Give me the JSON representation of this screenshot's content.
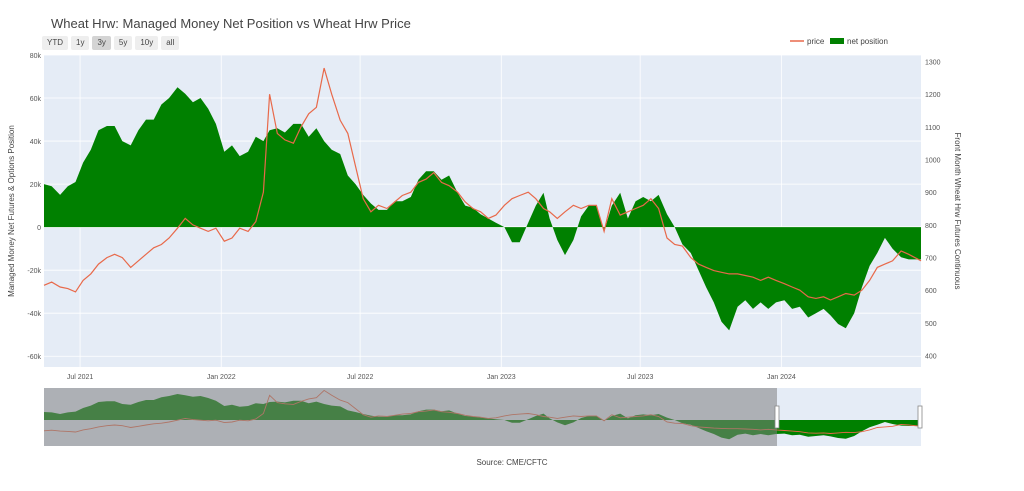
{
  "title": "Wheat Hrw: Managed Money Net Position vs Wheat Hrw Price",
  "range_buttons": [
    {
      "label": "YTD",
      "active": false
    },
    {
      "label": "1y",
      "active": false
    },
    {
      "label": "3y",
      "active": true
    },
    {
      "label": "5y",
      "active": false
    },
    {
      "label": "10y",
      "active": false
    },
    {
      "label": "all",
      "active": false
    }
  ],
  "source": "Source: CME/CFTC",
  "colors": {
    "price": "#e8694a",
    "net_position": "#008000",
    "plot_bg": "#e5ecf6",
    "navigator_shade": "#7f7f7f"
  },
  "chart_data": {
    "type": "line",
    "title": "Wheat Hrw: Managed Money Net Position vs Wheat Hrw Price",
    "y_left": {
      "label": "Managed Money Net Futures & Options Position",
      "range": [
        -65000,
        80000
      ],
      "ticks": [
        80000,
        60000,
        40000,
        20000,
        0,
        -20000,
        -40000,
        -60000
      ],
      "tick_labels": [
        "80k",
        "60k",
        "40k",
        "20k",
        "0",
        "-20k",
        "-40k",
        "-60k"
      ]
    },
    "y_right": {
      "label": "Front Month Wheat Hrw Futures Continuous",
      "range": [
        365,
        1320
      ],
      "ticks": [
        1300,
        1200,
        1100,
        1000,
        900,
        800,
        700,
        600,
        500,
        400
      ],
      "tick_labels": [
        "1300",
        "1200",
        "1100",
        "1000",
        "900",
        "800",
        "700",
        "600",
        "500",
        "400"
      ]
    },
    "x_axis": {
      "range": [
        "2021-05-15",
        "2024-07-01"
      ],
      "ticks": [
        "2021-07-01",
        "2022-01-01",
        "2022-07-01",
        "2023-01-01",
        "2023-07-01",
        "2024-01-01"
      ],
      "tick_labels": [
        "Jul 2021",
        "Jan 2022",
        "Jul 2022",
        "Jan 2023",
        "Jul 2023",
        "Jan 2024"
      ]
    },
    "legend": {
      "placement": "top-right",
      "entries": [
        "price",
        "net position"
      ]
    },
    "grid": true,
    "series": [
      {
        "name": "net position",
        "type": "area",
        "points": [
          [
            "2021-05-15",
            20000
          ],
          [
            "2021-05-25",
            19000
          ],
          [
            "2021-06-05",
            15000
          ],
          [
            "2021-06-15",
            19000
          ],
          [
            "2021-06-25",
            21000
          ],
          [
            "2021-07-05",
            30000
          ],
          [
            "2021-07-15",
            36000
          ],
          [
            "2021-07-25",
            45000
          ],
          [
            "2021-08-05",
            47000
          ],
          [
            "2021-08-15",
            47000
          ],
          [
            "2021-08-25",
            40000
          ],
          [
            "2021-09-05",
            38000
          ],
          [
            "2021-09-15",
            45000
          ],
          [
            "2021-09-25",
            50000
          ],
          [
            "2021-10-05",
            50000
          ],
          [
            "2021-10-15",
            57000
          ],
          [
            "2021-10-25",
            60000
          ],
          [
            "2021-11-05",
            65000
          ],
          [
            "2021-11-15",
            62000
          ],
          [
            "2021-11-25",
            58000
          ],
          [
            "2021-12-05",
            60000
          ],
          [
            "2021-12-15",
            55000
          ],
          [
            "2021-12-25",
            48000
          ],
          [
            "2022-01-05",
            35000
          ],
          [
            "2022-01-15",
            38000
          ],
          [
            "2022-01-25",
            33000
          ],
          [
            "2022-02-05",
            35000
          ],
          [
            "2022-02-15",
            42000
          ],
          [
            "2022-02-25",
            40000
          ],
          [
            "2022-03-05",
            45000
          ],
          [
            "2022-03-15",
            46000
          ],
          [
            "2022-03-25",
            44000
          ],
          [
            "2022-04-05",
            48000
          ],
          [
            "2022-04-15",
            48000
          ],
          [
            "2022-04-25",
            42000
          ],
          [
            "2022-05-05",
            46000
          ],
          [
            "2022-05-15",
            40000
          ],
          [
            "2022-05-25",
            36000
          ],
          [
            "2022-06-05",
            34000
          ],
          [
            "2022-06-15",
            24000
          ],
          [
            "2022-06-25",
            20000
          ],
          [
            "2022-07-05",
            15000
          ],
          [
            "2022-07-15",
            11000
          ],
          [
            "2022-07-25",
            8000
          ],
          [
            "2022-08-05",
            8000
          ],
          [
            "2022-08-15",
            12000
          ],
          [
            "2022-08-25",
            12000
          ],
          [
            "2022-09-05",
            14000
          ],
          [
            "2022-09-15",
            22000
          ],
          [
            "2022-09-25",
            26000
          ],
          [
            "2022-10-05",
            26000
          ],
          [
            "2022-10-15",
            22000
          ],
          [
            "2022-10-25",
            24000
          ],
          [
            "2022-11-05",
            16000
          ],
          [
            "2022-11-15",
            10000
          ],
          [
            "2022-11-25",
            9000
          ],
          [
            "2022-12-05",
            6000
          ],
          [
            "2022-12-15",
            4000
          ],
          [
            "2022-12-25",
            2000
          ],
          [
            "2023-01-05",
            0
          ],
          [
            "2023-01-15",
            -7000
          ],
          [
            "2023-01-25",
            -7000
          ],
          [
            "2023-02-05",
            2000
          ],
          [
            "2023-02-15",
            10000
          ],
          [
            "2023-02-25",
            16000
          ],
          [
            "2023-03-05",
            4000
          ],
          [
            "2023-03-15",
            -6000
          ],
          [
            "2023-03-25",
            -13000
          ],
          [
            "2023-04-05",
            -6000
          ],
          [
            "2023-04-15",
            5000
          ],
          [
            "2023-04-25",
            10000
          ],
          [
            "2023-05-05",
            10000
          ],
          [
            "2023-05-15",
            -2000
          ],
          [
            "2023-05-25",
            10000
          ],
          [
            "2023-06-05",
            16000
          ],
          [
            "2023-06-15",
            4000
          ],
          [
            "2023-06-25",
            12000
          ],
          [
            "2023-07-05",
            14000
          ],
          [
            "2023-07-15",
            12000
          ],
          [
            "2023-07-25",
            15000
          ],
          [
            "2023-08-05",
            6000
          ],
          [
            "2023-08-15",
            0
          ],
          [
            "2023-08-25",
            -8000
          ],
          [
            "2023-09-05",
            -12000
          ],
          [
            "2023-09-15",
            -20000
          ],
          [
            "2023-09-25",
            -28000
          ],
          [
            "2023-10-05",
            -35000
          ],
          [
            "2023-10-15",
            -44000
          ],
          [
            "2023-10-25",
            -48000
          ],
          [
            "2023-11-05",
            -37000
          ],
          [
            "2023-11-15",
            -34000
          ],
          [
            "2023-11-25",
            -38000
          ],
          [
            "2023-12-05",
            -35000
          ],
          [
            "2023-12-15",
            -38000
          ],
          [
            "2023-12-25",
            -35000
          ],
          [
            "2024-01-05",
            -34000
          ],
          [
            "2024-01-15",
            -38000
          ],
          [
            "2024-01-25",
            -37000
          ],
          [
            "2024-02-05",
            -42000
          ],
          [
            "2024-02-15",
            -40000
          ],
          [
            "2024-02-25",
            -38000
          ],
          [
            "2024-03-05",
            -41000
          ],
          [
            "2024-03-15",
            -45000
          ],
          [
            "2024-03-25",
            -47000
          ],
          [
            "2024-04-05",
            -40000
          ],
          [
            "2024-04-15",
            -28000
          ],
          [
            "2024-04-25",
            -18000
          ],
          [
            "2024-05-05",
            -12000
          ],
          [
            "2024-05-15",
            -5000
          ],
          [
            "2024-05-25",
            -10000
          ],
          [
            "2024-06-05",
            -14000
          ],
          [
            "2024-06-15",
            -15000
          ],
          [
            "2024-07-01",
            -15000
          ]
        ]
      },
      {
        "name": "price",
        "type": "line",
        "points": [
          [
            "2021-05-15",
            615
          ],
          [
            "2021-05-25",
            625
          ],
          [
            "2021-06-05",
            610
          ],
          [
            "2021-06-15",
            605
          ],
          [
            "2021-06-25",
            595
          ],
          [
            "2021-07-05",
            630
          ],
          [
            "2021-07-15",
            650
          ],
          [
            "2021-07-25",
            680
          ],
          [
            "2021-08-05",
            700
          ],
          [
            "2021-08-15",
            710
          ],
          [
            "2021-08-25",
            700
          ],
          [
            "2021-09-05",
            670
          ],
          [
            "2021-09-15",
            690
          ],
          [
            "2021-09-25",
            710
          ],
          [
            "2021-10-05",
            730
          ],
          [
            "2021-10-15",
            740
          ],
          [
            "2021-10-25",
            760
          ],
          [
            "2021-11-05",
            790
          ],
          [
            "2021-11-15",
            820
          ],
          [
            "2021-11-25",
            800
          ],
          [
            "2021-12-05",
            790
          ],
          [
            "2021-12-15",
            780
          ],
          [
            "2021-12-25",
            790
          ],
          [
            "2022-01-05",
            750
          ],
          [
            "2022-01-15",
            760
          ],
          [
            "2022-01-25",
            790
          ],
          [
            "2022-02-05",
            780
          ],
          [
            "2022-02-15",
            810
          ],
          [
            "2022-02-25",
            900
          ],
          [
            "2022-03-05",
            1200
          ],
          [
            "2022-03-15",
            1080
          ],
          [
            "2022-03-25",
            1060
          ],
          [
            "2022-04-05",
            1050
          ],
          [
            "2022-04-15",
            1100
          ],
          [
            "2022-04-25",
            1140
          ],
          [
            "2022-05-05",
            1160
          ],
          [
            "2022-05-15",
            1280
          ],
          [
            "2022-05-25",
            1200
          ],
          [
            "2022-06-05",
            1120
          ],
          [
            "2022-06-15",
            1080
          ],
          [
            "2022-06-25",
            980
          ],
          [
            "2022-07-05",
            880
          ],
          [
            "2022-07-15",
            840
          ],
          [
            "2022-07-25",
            860
          ],
          [
            "2022-08-05",
            850
          ],
          [
            "2022-08-15",
            870
          ],
          [
            "2022-08-25",
            890
          ],
          [
            "2022-09-05",
            900
          ],
          [
            "2022-09-15",
            930
          ],
          [
            "2022-09-25",
            940
          ],
          [
            "2022-10-05",
            960
          ],
          [
            "2022-10-15",
            930
          ],
          [
            "2022-10-25",
            920
          ],
          [
            "2022-11-05",
            900
          ],
          [
            "2022-11-15",
            870
          ],
          [
            "2022-11-25",
            850
          ],
          [
            "2022-12-05",
            840
          ],
          [
            "2022-12-15",
            820
          ],
          [
            "2022-12-25",
            830
          ],
          [
            "2023-01-05",
            860
          ],
          [
            "2023-01-15",
            880
          ],
          [
            "2023-01-25",
            890
          ],
          [
            "2023-02-05",
            900
          ],
          [
            "2023-02-15",
            880
          ],
          [
            "2023-02-25",
            850
          ],
          [
            "2023-03-05",
            840
          ],
          [
            "2023-03-15",
            820
          ],
          [
            "2023-03-25",
            840
          ],
          [
            "2023-04-05",
            860
          ],
          [
            "2023-04-15",
            850
          ],
          [
            "2023-04-25",
            860
          ],
          [
            "2023-05-05",
            860
          ],
          [
            "2023-05-15",
            780
          ],
          [
            "2023-05-25",
            880
          ],
          [
            "2023-06-05",
            830
          ],
          [
            "2023-06-15",
            840
          ],
          [
            "2023-06-25",
            850
          ],
          [
            "2023-07-05",
            860
          ],
          [
            "2023-07-15",
            880
          ],
          [
            "2023-07-25",
            850
          ],
          [
            "2023-08-05",
            760
          ],
          [
            "2023-08-15",
            740
          ],
          [
            "2023-08-25",
            735
          ],
          [
            "2023-09-05",
            700
          ],
          [
            "2023-09-15",
            680
          ],
          [
            "2023-09-25",
            670
          ],
          [
            "2023-10-05",
            660
          ],
          [
            "2023-10-15",
            655
          ],
          [
            "2023-10-25",
            650
          ],
          [
            "2023-11-05",
            650
          ],
          [
            "2023-11-15",
            645
          ],
          [
            "2023-11-25",
            640
          ],
          [
            "2023-12-05",
            630
          ],
          [
            "2023-12-15",
            640
          ],
          [
            "2023-12-25",
            630
          ],
          [
            "2024-01-05",
            620
          ],
          [
            "2024-01-15",
            610
          ],
          [
            "2024-01-25",
            600
          ],
          [
            "2024-02-05",
            580
          ],
          [
            "2024-02-15",
            575
          ],
          [
            "2024-02-25",
            580
          ],
          [
            "2024-03-05",
            570
          ],
          [
            "2024-03-15",
            580
          ],
          [
            "2024-03-25",
            590
          ],
          [
            "2024-04-05",
            585
          ],
          [
            "2024-04-15",
            600
          ],
          [
            "2024-04-25",
            630
          ],
          [
            "2024-05-05",
            670
          ],
          [
            "2024-05-15",
            680
          ],
          [
            "2024-05-25",
            690
          ],
          [
            "2024-06-05",
            720
          ],
          [
            "2024-06-15",
            710
          ],
          [
            "2024-07-01",
            690
          ]
        ]
      }
    ]
  }
}
